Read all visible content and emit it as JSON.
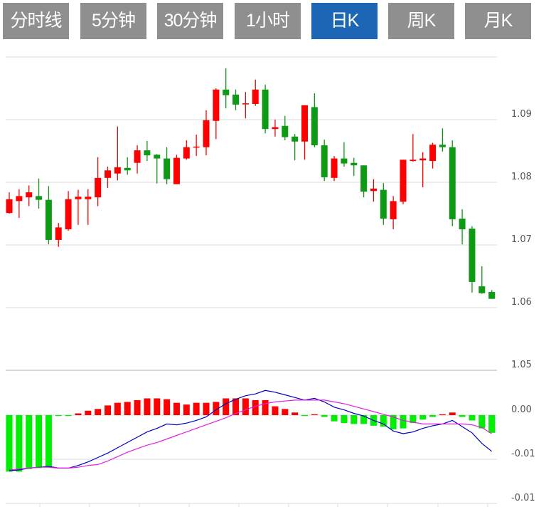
{
  "tabs": [
    {
      "label": "分时线",
      "active": false
    },
    {
      "label": "5分钟",
      "active": false
    },
    {
      "label": "30分钟",
      "active": false
    },
    {
      "label": "1小时",
      "active": false
    },
    {
      "label": "日K",
      "active": true
    },
    {
      "label": "周K",
      "active": false
    },
    {
      "label": "月K",
      "active": false
    }
  ],
  "colors": {
    "tab_bg": "#8f8f8f",
    "tab_active_bg": "#1c66b5",
    "up": "#ff0000",
    "down": "#0f9a16",
    "macd_up": "#ff0000",
    "macd_down": "#00ee00",
    "dif": "#0000c0",
    "dea": "#e020e0",
    "grid": "#d8d8d8"
  },
  "chart_data": [
    {
      "type": "candlestick",
      "title": "",
      "ylim": [
        1.05,
        1.1
      ],
      "y_ticks": [
        "1.09",
        "1.08",
        "1.07",
        "1.06",
        "1.05"
      ],
      "y_tick_values": [
        1.09,
        1.08,
        1.07,
        1.06,
        1.05
      ],
      "grid": true,
      "ohlc": [
        [
          1.0751,
          1.0784,
          1.075,
          1.0773
        ],
        [
          1.077,
          1.0789,
          1.0743,
          1.0778
        ],
        [
          1.0776,
          1.0795,
          1.0762,
          1.0784
        ],
        [
          1.0778,
          1.0806,
          1.0758,
          1.0772
        ],
        [
          1.0772,
          1.0794,
          1.0701,
          1.0708
        ],
        [
          1.0708,
          1.0735,
          1.0697,
          1.0728
        ],
        [
          1.0725,
          1.0786,
          1.0723,
          1.0773
        ],
        [
          1.0773,
          1.0788,
          1.0732,
          1.0777
        ],
        [
          1.0773,
          1.0789,
          1.0732,
          1.0777
        ],
        [
          1.0776,
          1.084,
          1.0762,
          1.0807
        ],
        [
          1.0807,
          1.0825,
          1.0791,
          1.0819
        ],
        [
          1.0814,
          1.0889,
          1.0803,
          1.0824
        ],
        [
          1.0823,
          1.084,
          1.0812,
          1.0819
        ],
        [
          1.0831,
          1.0859,
          1.0814,
          1.0851
        ],
        [
          1.0851,
          1.0866,
          1.0834,
          1.0843
        ],
        [
          1.0844,
          1.0845,
          1.0798,
          1.0838
        ],
        [
          1.0838,
          1.0856,
          1.0797,
          1.0805
        ],
        [
          1.0797,
          1.0844,
          1.0797,
          1.0839
        ],
        [
          1.0838,
          1.0867,
          1.0836,
          1.0856
        ],
        [
          1.0856,
          1.0876,
          1.0842,
          1.0857
        ],
        [
          1.0856,
          1.0915,
          1.0843,
          1.0899
        ],
        [
          1.0898,
          1.095,
          1.0869,
          1.0948
        ],
        [
          1.0948,
          1.0982,
          1.0918,
          1.0939
        ],
        [
          1.094,
          1.0948,
          1.0915,
          1.0924
        ],
        [
          1.0925,
          1.0944,
          1.0902,
          1.0926
        ],
        [
          1.0925,
          1.0964,
          1.0922,
          1.0948
        ],
        [
          1.0948,
          1.0956,
          1.0878,
          1.0885
        ],
        [
          1.0885,
          1.09,
          1.0873,
          1.0888
        ],
        [
          1.089,
          1.0906,
          1.0867,
          1.0872
        ],
        [
          1.0873,
          1.0877,
          1.0835,
          1.0865
        ],
        [
          1.0865,
          1.0923,
          1.0836,
          1.0923
        ],
        [
          1.092,
          1.0942,
          1.0856,
          1.0859
        ],
        [
          1.0859,
          1.0868,
          1.0802,
          1.0808
        ],
        [
          1.0807,
          1.0842,
          1.0802,
          1.0838
        ],
        [
          1.0838,
          1.0864,
          1.0825,
          1.083
        ],
        [
          1.0831,
          1.0839,
          1.081,
          1.0827
        ],
        [
          1.0827,
          1.0827,
          1.0776,
          1.0785
        ],
        [
          1.0786,
          1.0805,
          1.0769,
          1.079
        ],
        [
          1.0788,
          1.0799,
          1.0732,
          1.0742
        ],
        [
          1.0741,
          1.0778,
          1.0725,
          1.077
        ],
        [
          1.0769,
          1.0836,
          1.0765,
          1.0836
        ],
        [
          1.0834,
          1.0877,
          1.0833,
          1.0836
        ],
        [
          1.0835,
          1.0848,
          1.0792,
          1.0838
        ],
        [
          1.0834,
          1.0863,
          1.0822,
          1.086
        ],
        [
          1.086,
          1.0886,
          1.0849,
          1.0856
        ],
        [
          1.0856,
          1.0867,
          1.073,
          1.0741
        ],
        [
          1.0742,
          1.0757,
          1.0701,
          1.0725
        ],
        [
          1.0726,
          1.073,
          1.0624,
          1.0641
        ],
        [
          1.0634,
          1.0666,
          1.0622,
          1.0623
        ],
        [
          1.0625,
          1.0628,
          1.0614,
          1.0614
        ]
      ]
    },
    {
      "type": "bar+line",
      "title": "",
      "ylim": [
        -0.01,
        0.0052
      ],
      "y_ticks": [
        "0.00",
        "-0.01",
        "-0.01"
      ],
      "y_tick_values": [
        0,
        -0.005,
        -0.01
      ],
      "grid": true,
      "series": [
        {
          "key": "hist",
          "values": [
            -0.0064,
            -0.0064,
            -0.0061,
            -0.006,
            -0.0058,
            -0.0001,
            -0.0001,
            0.0002,
            0.0005,
            0.0007,
            0.0011,
            0.0014,
            0.0015,
            0.0017,
            0.0019,
            0.0019,
            0.0018,
            0.0014,
            0.0012,
            0.0014,
            0.0014,
            0.0015,
            0.0019,
            0.0019,
            0.0019,
            0.0017,
            0.0017,
            0.001,
            0.0007,
            0.0003,
            -0.0001,
            0.0001,
            -0.0002,
            -0.0007,
            -0.0009,
            -0.001,
            -0.001,
            -0.0012,
            -0.0013,
            -0.0016,
            -0.0015,
            -0.0009,
            -0.0005,
            -0.0002,
            0.0001,
            0.0003,
            -0.0002,
            -0.0006,
            -0.0015,
            -0.002
          ]
        },
        {
          "key": "dif",
          "values": [
            -0.0063,
            -0.0062,
            -0.006,
            -0.0059,
            -0.0058,
            -0.006,
            -0.006,
            -0.0057,
            -0.0053,
            -0.0048,
            -0.0043,
            -0.0037,
            -0.0031,
            -0.0025,
            -0.0019,
            -0.0015,
            -0.001,
            -0.0011,
            -0.0009,
            -0.0006,
            -0.0002,
            0.0006,
            0.0013,
            0.0018,
            0.0022,
            0.0024,
            0.0028,
            0.0026,
            0.0023,
            0.002,
            0.0017,
            0.0019,
            0.0015,
            0.0009,
            0.0006,
            0.0002,
            -0.0001,
            -0.0006,
            -0.001,
            -0.0018,
            -0.0021,
            -0.0019,
            -0.0015,
            -0.0012,
            -0.001,
            -0.0006,
            -0.0013,
            -0.002,
            -0.0032,
            -0.0041
          ]
        },
        {
          "key": "dea",
          "values": [
            -0.0062,
            -0.0061,
            -0.006,
            -0.0059,
            -0.0059,
            -0.006,
            -0.006,
            -0.0059,
            -0.0057,
            -0.0056,
            -0.0052,
            -0.0047,
            -0.0042,
            -0.0038,
            -0.0034,
            -0.0031,
            -0.0027,
            -0.0023,
            -0.0019,
            -0.0015,
            -0.0011,
            -0.0007,
            -0.0003,
            0.0002,
            0.0006,
            0.001,
            0.0013,
            0.0015,
            0.0016,
            0.0017,
            0.0017,
            0.0017,
            0.0017,
            0.0015,
            0.0013,
            0.001,
            0.0007,
            0.0004,
            0.0001,
            -0.0002,
            -0.0006,
            -0.0008,
            -0.001,
            -0.001,
            -0.001,
            -0.001,
            -0.001,
            -0.0011,
            -0.0014,
            -0.0021
          ]
        }
      ]
    }
  ]
}
